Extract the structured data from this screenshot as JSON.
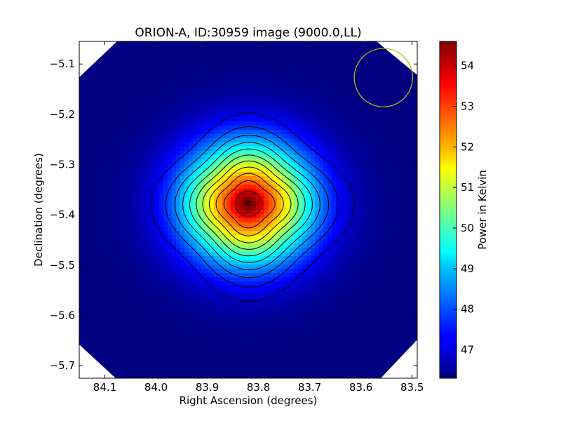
{
  "chart_data": {
    "type": "heatmap",
    "title": "ORION-A, ID:30959 image (9000.0,LL)",
    "xlabel": "Right Ascension (degrees)",
    "ylabel": "Declination (degrees)",
    "colorbar_label": "Power in Kelvin",
    "colormap": "jet",
    "x_inverted": true,
    "xlim": [
      84.15,
      83.49
    ],
    "ylim": [
      -5.725,
      -5.055
    ],
    "x_ticks": [
      84.1,
      84.0,
      83.9,
      83.8,
      83.7,
      83.6,
      83.5
    ],
    "x_tick_labels": [
      "84.1",
      "84.0",
      "83.9",
      "83.8",
      "83.7",
      "83.6",
      "83.5"
    ],
    "y_ticks": [
      -5.1,
      -5.2,
      -5.3,
      -5.4,
      -5.5,
      -5.6,
      -5.7
    ],
    "y_tick_labels": [
      "−5.1",
      "−5.2",
      "−5.3",
      "−5.4",
      "−5.5",
      "−5.6",
      "−5.7"
    ],
    "colorbar_range": [
      46.3,
      54.6
    ],
    "colorbar_ticks": [
      47,
      48,
      49,
      50,
      51,
      52,
      53,
      54
    ],
    "colorbar_tick_labels": [
      "47",
      "48",
      "49",
      "50",
      "51",
      "52",
      "53",
      "54"
    ],
    "peak": {
      "ra": 83.82,
      "dec": -5.377,
      "value": 54.6
    },
    "background_value": 46.3,
    "contour_levels": [
      47.2,
      47.9,
      48.5,
      49.1,
      49.7,
      50.3,
      50.9,
      51.5,
      52.1,
      52.7,
      53.3,
      53.9,
      54.4
    ],
    "beam_circle": {
      "ra": 83.556,
      "dec": -5.127,
      "radius_deg": 0.057,
      "color": "#bfbf00"
    },
    "contour_color": "#000000"
  }
}
